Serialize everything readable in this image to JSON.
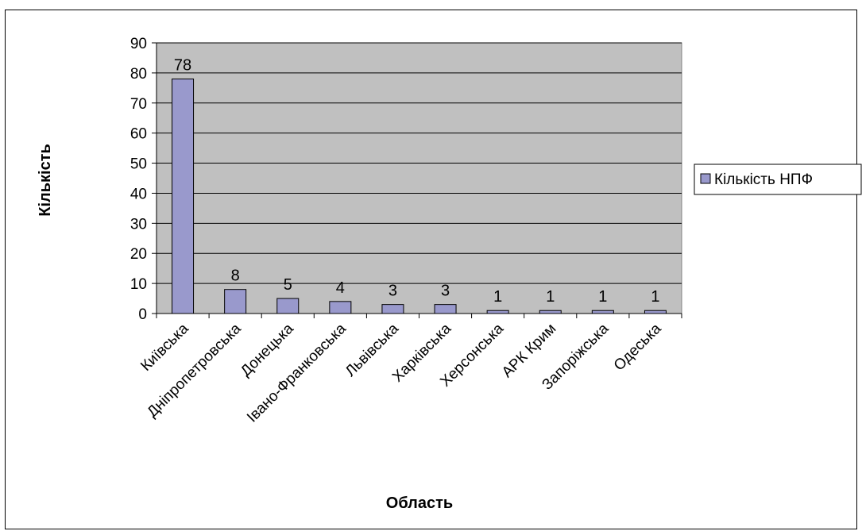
{
  "chart_data": {
    "type": "bar",
    "title": "",
    "xlabel": "Область",
    "ylabel": "Кількість",
    "categories": [
      "Київська",
      "Дніпропетровська",
      "Донецька",
      "Івано-Франковська",
      "Львівська",
      "Харківська",
      "Херсонська",
      "АРК Крим",
      "Запоріжська",
      "Одеська"
    ],
    "series": [
      {
        "name": "Кількість НПФ",
        "values": [
          78,
          8,
          5,
          4,
          3,
          3,
          1,
          1,
          1,
          1
        ]
      }
    ],
    "ylim": [
      0,
      90
    ],
    "yticks": [
      0,
      10,
      20,
      30,
      40,
      50,
      60,
      70,
      80,
      90
    ],
    "grid": true,
    "legend_position": "right",
    "colors": {
      "bar_fill": "#9999cc",
      "plot_background": "#c0c0c0",
      "gridline": "#000000"
    }
  }
}
